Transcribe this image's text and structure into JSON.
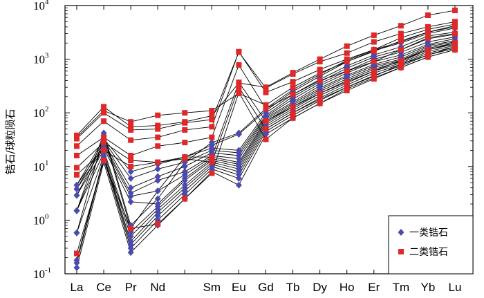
{
  "chart_data": {
    "type": "line",
    "ylabel": "锆石/球粒陨石",
    "xlabel": "",
    "yscale": "log",
    "ylim": [
      0.1,
      10000
    ],
    "yticks": [
      {
        "value": 0.1,
        "base": "10",
        "exp": "-1"
      },
      {
        "value": 1,
        "base": "10",
        "exp": "0"
      },
      {
        "value": 10,
        "base": "10",
        "exp": "1"
      },
      {
        "value": 100,
        "base": "10",
        "exp": "2"
      },
      {
        "value": 1000,
        "base": "10",
        "exp": "3"
      },
      {
        "value": 10000,
        "base": "10",
        "exp": "4"
      }
    ],
    "categories": [
      "La",
      "Ce",
      "Pr",
      "Nd",
      "",
      "Sm",
      "Eu",
      "Gd",
      "Tb",
      "Dy",
      "Ho",
      "Er",
      "Tm",
      "Yb",
      "Lu"
    ],
    "legend": {
      "position": "bottom-right",
      "entries": [
        {
          "label": "一类锆石",
          "marker": "diamond",
          "color": "#4a4ab0"
        },
        {
          "label": "二类锆石",
          "marker": "square",
          "color": "#e02828"
        }
      ]
    },
    "line_color": "#000000",
    "groups": [
      {
        "name": "一类锆石",
        "marker": "diamond",
        "color": "#4a4ab0",
        "samples": [
          [
            0.13,
            12,
            0.25,
            0.8,
            2.5,
            8,
            4.5,
            40,
            80,
            150,
            280,
            450,
            700,
            1100,
            1500
          ],
          [
            0.16,
            14,
            0.3,
            1.0,
            3.0,
            9,
            6,
            45,
            90,
            170,
            300,
            500,
            750,
            1200,
            1600
          ],
          [
            0.18,
            15,
            0.35,
            1.2,
            3.5,
            10,
            7,
            50,
            100,
            190,
            330,
            550,
            800,
            1300,
            1700
          ],
          [
            0.58,
            16,
            0.4,
            1.4,
            4.0,
            11,
            8,
            55,
            110,
            210,
            360,
            600,
            850,
            1400,
            1800
          ],
          [
            1.5,
            18,
            0.5,
            1.6,
            4.5,
            12,
            9,
            60,
            120,
            230,
            400,
            650,
            900,
            1500,
            1900
          ],
          [
            2.9,
            20,
            0.6,
            1.8,
            5.5,
            13,
            10,
            65,
            130,
            250,
            430,
            700,
            950,
            1600,
            2000
          ],
          [
            3.8,
            22,
            2.2,
            2.0,
            6.0,
            14,
            11,
            70,
            140,
            270,
            470,
            750,
            1000,
            1700,
            2100
          ],
          [
            4.5,
            24,
            2.8,
            3.5,
            7.0,
            15,
            12,
            75,
            150,
            290,
            500,
            800,
            1100,
            1800,
            2200
          ],
          [
            1.5,
            26,
            3.2,
            5.5,
            8.0,
            16,
            14,
            80,
            160,
            320,
            550,
            900,
            1200,
            1900,
            2400
          ],
          [
            2.9,
            28,
            4.0,
            6.5,
            10,
            18,
            16,
            85,
            180,
            350,
            600,
            1000,
            1350,
            2100,
            2600
          ],
          [
            3.8,
            30,
            6.0,
            9.0,
            12,
            20,
            18,
            90,
            200,
            380,
            680,
            1100,
            1500,
            2400,
            2900
          ],
          [
            4.5,
            33,
            8.0,
            11,
            15,
            22,
            20,
            100,
            220,
            420,
            750,
            1200,
            1700,
            2700,
            3200
          ],
          [
            0.58,
            38,
            0.7,
            3.5,
            15,
            25,
            40,
            110,
            250,
            480,
            900,
            1450,
            2000,
            3000,
            3800
          ],
          [
            1.5,
            42,
            0.8,
            2.5,
            12,
            28,
            42,
            120,
            270,
            520,
            950,
            1500,
            2100,
            3200,
            4200
          ]
        ]
      },
      {
        "name": "二类锆石",
        "marker": "square",
        "color": "#e02828",
        "samples": [
          [
            0.24,
            13,
            0.7,
            0.85,
            2.5,
            7.5,
            240,
            32,
            80,
            150,
            260,
            430,
            700,
            1100,
            1500
          ],
          [
            7.0,
            20,
            10,
            12,
            14,
            12,
            300,
            50,
            100,
            180,
            300,
            480,
            800,
            1200,
            1700
          ],
          [
            9.5,
            28,
            13,
            12,
            15,
            15,
            370,
            70,
            130,
            230,
            380,
            600,
            950,
            1500,
            2000
          ],
          [
            16,
            35,
            16,
            24,
            28,
            35,
            780,
            120,
            220,
            400,
            600,
            900,
            1500,
            2500,
            3000
          ],
          [
            24,
            70,
            31,
            35,
            48,
            55,
            1380,
            240,
            380,
            640,
            1000,
            1500,
            2500,
            3600,
            4500
          ],
          [
            33,
            100,
            48,
            50,
            65,
            75,
            1350,
            290,
            530,
            900,
            1300,
            2100,
            3000,
            4000,
            5000
          ],
          [
            38,
            130,
            55,
            58,
            68,
            88,
            360,
            300,
            560,
            1000,
            1750,
            2800,
            4200,
            6600,
            8100
          ],
          [
            35,
            110,
            68,
            90,
            100,
            110,
            230,
            140,
            300,
            550,
            900,
            1400,
            2200,
            3200,
            4000
          ]
        ]
      }
    ]
  }
}
